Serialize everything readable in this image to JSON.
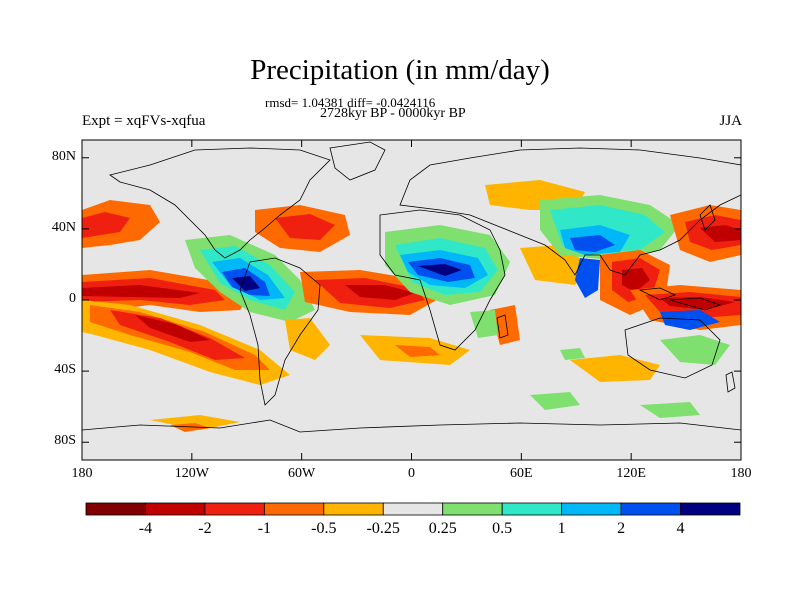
{
  "title": "Precipitation (in mm/day)",
  "stats": "rmsd= 1.04381 diff= -0.0424116",
  "period": "2728kyr BP - 0000kyr BP",
  "experiment": "Expt = xqFVs-xqfua",
  "season": "JJA",
  "lat_ticks": [
    {
      "label": "80N",
      "lat": 80
    },
    {
      "label": "40N",
      "lat": 40
    },
    {
      "label": "0",
      "lat": 0
    },
    {
      "label": "40S",
      "lat": -40
    },
    {
      "label": "80S",
      "lat": -80
    }
  ],
  "lon_ticks": [
    {
      "label": "180",
      "lon": -180
    },
    {
      "label": "120W",
      "lon": -120
    },
    {
      "label": "60W",
      "lon": -60
    },
    {
      "label": "0",
      "lon": 0
    },
    {
      "label": "60E",
      "lon": 60
    },
    {
      "label": "120E",
      "lon": 120
    },
    {
      "label": "180",
      "lon": 180
    }
  ],
  "colorbar": {
    "colors": [
      "#800000",
      "#c00000",
      "#f02010",
      "#ff6a00",
      "#ffb400",
      "#e6e6e6",
      "#7fe070",
      "#30e8c8",
      "#00b8f8",
      "#0050f0",
      "#000080"
    ],
    "labels": [
      "-4",
      "-2",
      "-1",
      "-0.5",
      "-0.25",
      "0.25",
      "0.5",
      "1",
      "2",
      "4"
    ]
  },
  "palette": {
    "background": "#e6e6e6",
    "coast": "#000000"
  }
}
